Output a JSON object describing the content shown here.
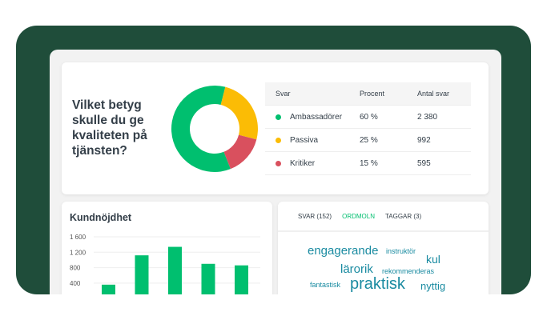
{
  "question": "Vilket betyg skulle du ge kvaliteten på tjänsten?",
  "table": {
    "headers": [
      "Svar",
      "Procent",
      "Antal svar"
    ],
    "rows": [
      {
        "label": "Ambassadörer",
        "percent": "60 %",
        "count": "2 380",
        "color": "#00bf6f"
      },
      {
        "label": "Passiva",
        "percent": "25 %",
        "count": "992",
        "color": "#fbbc05"
      },
      {
        "label": "Kritiker",
        "percent": "15 %",
        "count": "595",
        "color": "#d9505e"
      }
    ]
  },
  "chart_data": [
    {
      "type": "pie",
      "donut": true,
      "categories": [
        "Ambassadörer",
        "Passiva",
        "Kritiker"
      ],
      "values": [
        60,
        25,
        15
      ],
      "colors": [
        "#00bf6f",
        "#fbbc05",
        "#d9505e"
      ]
    },
    {
      "type": "bar",
      "title": "Kundnöjdhet",
      "y_ticks": [
        "1 600",
        "1 200",
        "800",
        "400"
      ],
      "ylim": [
        0,
        1600
      ],
      "values": [
        360,
        1120,
        1340,
        900,
        860
      ],
      "color": "#00bf6f",
      "grid": true
    }
  ],
  "tabs": [
    {
      "label": "SVAR (152)",
      "active": false
    },
    {
      "label": "ORDMOLN",
      "active": true
    },
    {
      "label": "TAGGAR (3)",
      "active": false
    }
  ],
  "words": [
    "engagerande",
    "instruktör",
    "kul",
    "lärorik",
    "rekommenderas",
    "fantastisk",
    "praktisk",
    "nyttig"
  ]
}
